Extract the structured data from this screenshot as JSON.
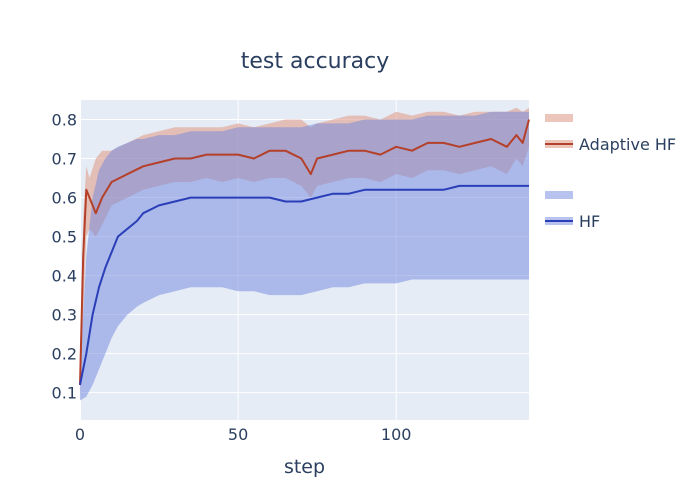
{
  "chart_data": {
    "type": "line",
    "title": "test accuracy",
    "xlabel": "step",
    "ylabel": "",
    "xlim": [
      0,
      142
    ],
    "ylim": [
      0.03,
      0.85
    ],
    "xticks": [
      0,
      50,
      100
    ],
    "xtick_labels": [
      "0",
      "50",
      "100"
    ],
    "yticks": [
      0.1,
      0.2,
      0.3,
      0.4,
      0.5,
      0.6,
      0.7,
      0.8
    ],
    "ytick_labels": [
      "0.1",
      "0.2",
      "0.3",
      "0.4",
      "0.5",
      "0.6",
      "0.7",
      "0.8"
    ],
    "grid": true,
    "legend_position": "right",
    "series": [
      {
        "name": "Adaptive HF",
        "line_color": "#b5402a",
        "band_color": "#e0a08e",
        "band_opacity": 0.6,
        "x": [
          0,
          1,
          2,
          3,
          5,
          7,
          10,
          15,
          20,
          25,
          30,
          35,
          40,
          45,
          50,
          55,
          60,
          65,
          70,
          73,
          75,
          80,
          85,
          90,
          95,
          100,
          105,
          110,
          115,
          120,
          125,
          130,
          135,
          138,
          140,
          142
        ],
        "mean": [
          0.12,
          0.45,
          0.62,
          0.6,
          0.56,
          0.6,
          0.64,
          0.66,
          0.68,
          0.69,
          0.7,
          0.7,
          0.71,
          0.71,
          0.71,
          0.7,
          0.72,
          0.72,
          0.7,
          0.66,
          0.7,
          0.71,
          0.72,
          0.72,
          0.71,
          0.73,
          0.72,
          0.74,
          0.74,
          0.73,
          0.74,
          0.75,
          0.73,
          0.76,
          0.74,
          0.8
        ],
        "upper": [
          0.15,
          0.55,
          0.68,
          0.65,
          0.7,
          0.72,
          0.72,
          0.74,
          0.76,
          0.77,
          0.78,
          0.78,
          0.78,
          0.78,
          0.79,
          0.78,
          0.79,
          0.8,
          0.8,
          0.78,
          0.79,
          0.8,
          0.81,
          0.81,
          0.8,
          0.82,
          0.81,
          0.82,
          0.82,
          0.81,
          0.82,
          0.82,
          0.82,
          0.83,
          0.82,
          0.83
        ],
        "lower": [
          0.09,
          0.3,
          0.5,
          0.52,
          0.5,
          0.53,
          0.58,
          0.6,
          0.62,
          0.63,
          0.64,
          0.64,
          0.65,
          0.64,
          0.65,
          0.64,
          0.65,
          0.65,
          0.63,
          0.6,
          0.63,
          0.64,
          0.65,
          0.65,
          0.64,
          0.66,
          0.65,
          0.67,
          0.67,
          0.66,
          0.67,
          0.68,
          0.66,
          0.7,
          0.68,
          0.73
        ]
      },
      {
        "name": "HF",
        "line_color": "#2a3eb8",
        "band_color": "#6f86de",
        "band_opacity": 0.5,
        "x": [
          0,
          2,
          4,
          6,
          8,
          10,
          12,
          15,
          18,
          20,
          25,
          30,
          35,
          40,
          45,
          50,
          55,
          60,
          65,
          70,
          75,
          80,
          85,
          90,
          95,
          100,
          105,
          110,
          115,
          120,
          125,
          130,
          135,
          140,
          142
        ],
        "mean": [
          0.12,
          0.2,
          0.3,
          0.37,
          0.42,
          0.46,
          0.5,
          0.52,
          0.54,
          0.56,
          0.58,
          0.59,
          0.6,
          0.6,
          0.6,
          0.6,
          0.6,
          0.6,
          0.59,
          0.59,
          0.6,
          0.61,
          0.61,
          0.62,
          0.62,
          0.62,
          0.62,
          0.62,
          0.62,
          0.63,
          0.63,
          0.63,
          0.63,
          0.63,
          0.63
        ],
        "upper": [
          0.15,
          0.45,
          0.6,
          0.67,
          0.7,
          0.72,
          0.73,
          0.74,
          0.75,
          0.75,
          0.76,
          0.76,
          0.77,
          0.77,
          0.77,
          0.78,
          0.78,
          0.78,
          0.78,
          0.78,
          0.79,
          0.79,
          0.79,
          0.8,
          0.8,
          0.8,
          0.8,
          0.81,
          0.81,
          0.81,
          0.81,
          0.82,
          0.82,
          0.82,
          0.82
        ],
        "lower": [
          0.08,
          0.09,
          0.12,
          0.16,
          0.2,
          0.24,
          0.27,
          0.3,
          0.32,
          0.33,
          0.35,
          0.36,
          0.37,
          0.37,
          0.37,
          0.36,
          0.36,
          0.35,
          0.35,
          0.35,
          0.36,
          0.37,
          0.37,
          0.38,
          0.38,
          0.38,
          0.39,
          0.39,
          0.39,
          0.39,
          0.39,
          0.39,
          0.39,
          0.39,
          0.39
        ]
      }
    ]
  }
}
